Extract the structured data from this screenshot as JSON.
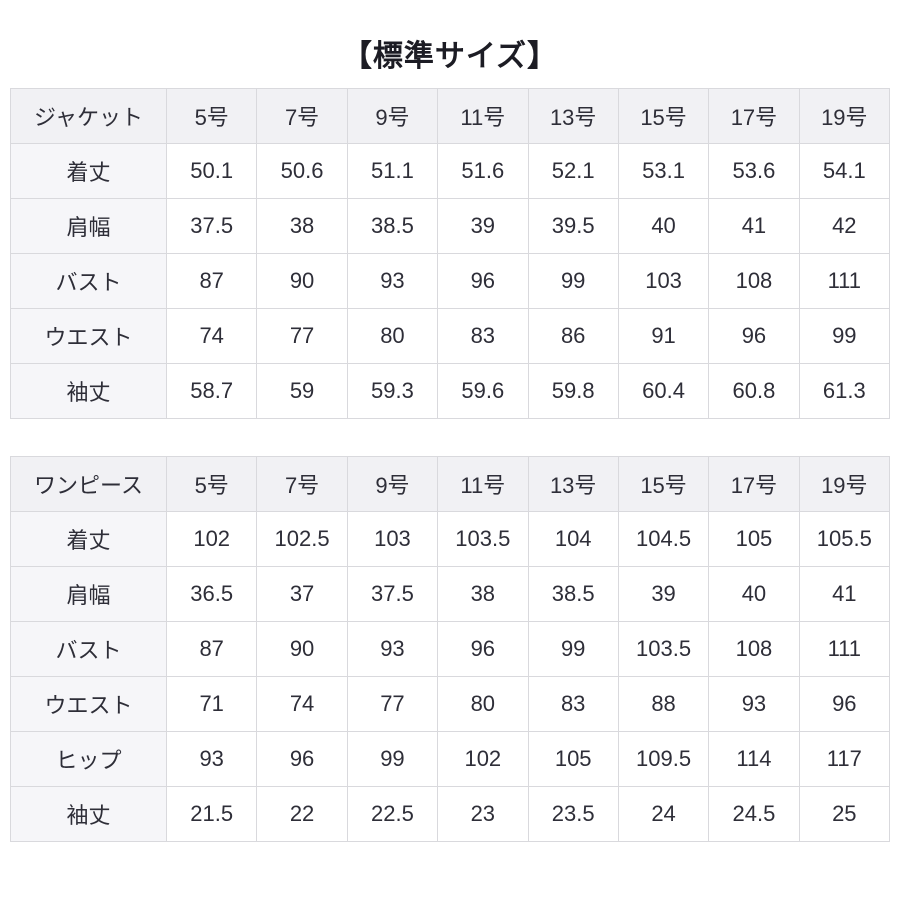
{
  "title": "【標準サイズ】",
  "colors": {
    "header_row_bg": "#f1f1f4",
    "label_column_bg": "#f6f6f9",
    "cell_bg": "#ffffff",
    "border": "#d9d9dd",
    "text": "#2e2e38",
    "title_text": "#1c1c24"
  },
  "tables": [
    {
      "id": "jacket",
      "corner_label": "ジャケット",
      "size_columns": [
        "5号",
        "7号",
        "9号",
        "11号",
        "13号",
        "15号",
        "17号",
        "19号"
      ],
      "rows": [
        {
          "label": "着丈",
          "values": [
            "50.1",
            "50.6",
            "51.1",
            "51.6",
            "52.1",
            "53.1",
            "53.6",
            "54.1"
          ]
        },
        {
          "label": "肩幅",
          "values": [
            "37.5",
            "38",
            "38.5",
            "39",
            "39.5",
            "40",
            "41",
            "42"
          ]
        },
        {
          "label": "バスト",
          "values": [
            "87",
            "90",
            "93",
            "96",
            "99",
            "103",
            "108",
            "111"
          ]
        },
        {
          "label": "ウエスト",
          "values": [
            "74",
            "77",
            "80",
            "83",
            "86",
            "91",
            "96",
            "99"
          ]
        },
        {
          "label": "袖丈",
          "values": [
            "58.7",
            "59",
            "59.3",
            "59.6",
            "59.8",
            "60.4",
            "60.8",
            "61.3"
          ]
        }
      ]
    },
    {
      "id": "onepiece",
      "corner_label": "ワンピース",
      "size_columns": [
        "5号",
        "7号",
        "9号",
        "11号",
        "13号",
        "15号",
        "17号",
        "19号"
      ],
      "rows": [
        {
          "label": "着丈",
          "values": [
            "102",
            "102.5",
            "103",
            "103.5",
            "104",
            "104.5",
            "105",
            "105.5"
          ]
        },
        {
          "label": "肩幅",
          "values": [
            "36.5",
            "37",
            "37.5",
            "38",
            "38.5",
            "39",
            "40",
            "41"
          ]
        },
        {
          "label": "バスト",
          "values": [
            "87",
            "90",
            "93",
            "96",
            "99",
            "103.5",
            "108",
            "111"
          ]
        },
        {
          "label": "ウエスト",
          "values": [
            "71",
            "74",
            "77",
            "80",
            "83",
            "88",
            "93",
            "96"
          ]
        },
        {
          "label": "ヒップ",
          "values": [
            "93",
            "96",
            "99",
            "102",
            "105",
            "109.5",
            "114",
            "117"
          ]
        },
        {
          "label": "袖丈",
          "values": [
            "21.5",
            "22",
            "22.5",
            "23",
            "23.5",
            "24",
            "24.5",
            "25"
          ]
        }
      ]
    }
  ],
  "chart_data": [
    {
      "type": "table",
      "title": "標準サイズ ジャケット",
      "categories": [
        "5号",
        "7号",
        "9号",
        "11号",
        "13号",
        "15号",
        "17号",
        "19号"
      ],
      "series": [
        {
          "name": "着丈",
          "values": [
            50.1,
            50.6,
            51.1,
            51.6,
            52.1,
            53.1,
            53.6,
            54.1
          ]
        },
        {
          "name": "肩幅",
          "values": [
            37.5,
            38,
            38.5,
            39,
            39.5,
            40,
            41,
            42
          ]
        },
        {
          "name": "バスト",
          "values": [
            87,
            90,
            93,
            96,
            99,
            103,
            108,
            111
          ]
        },
        {
          "name": "ウエスト",
          "values": [
            74,
            77,
            80,
            83,
            86,
            91,
            96,
            99
          ]
        },
        {
          "name": "袖丈",
          "values": [
            58.7,
            59,
            59.3,
            59.6,
            59.8,
            60.4,
            60.8,
            61.3
          ]
        }
      ]
    },
    {
      "type": "table",
      "title": "標準サイズ ワンピース",
      "categories": [
        "5号",
        "7号",
        "9号",
        "11号",
        "13号",
        "15号",
        "17号",
        "19号"
      ],
      "series": [
        {
          "name": "着丈",
          "values": [
            102,
            102.5,
            103,
            103.5,
            104,
            104.5,
            105,
            105.5
          ]
        },
        {
          "name": "肩幅",
          "values": [
            36.5,
            37,
            37.5,
            38,
            38.5,
            39,
            40,
            41
          ]
        },
        {
          "name": "バスト",
          "values": [
            87,
            90,
            93,
            96,
            99,
            103.5,
            108,
            111
          ]
        },
        {
          "name": "ウエスト",
          "values": [
            71,
            74,
            77,
            80,
            83,
            88,
            93,
            96
          ]
        },
        {
          "name": "ヒップ",
          "values": [
            93,
            96,
            99,
            102,
            105,
            109.5,
            114,
            117
          ]
        },
        {
          "name": "袖丈",
          "values": [
            21.5,
            22,
            22.5,
            23,
            23.5,
            24,
            24.5,
            25
          ]
        }
      ]
    }
  ]
}
